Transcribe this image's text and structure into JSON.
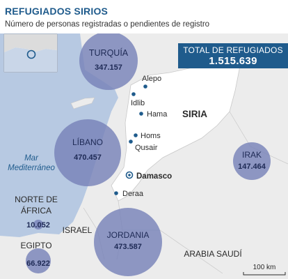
{
  "header": {
    "title": "REFUGIADOS SIRIOS",
    "subtitle": "Número de personas registradas o pendientes de registro"
  },
  "total": {
    "label": "TOTAL DE REFUGIADOS",
    "value": "1.515.639"
  },
  "countries": [
    {
      "name": "TURQUÍA",
      "value": "347.157"
    },
    {
      "name": "LÍBANO",
      "value": "470.457"
    },
    {
      "name": "IRAK",
      "value": "147.464"
    },
    {
      "name": "JORDANIA",
      "value": "473.587"
    },
    {
      "name": "NORTE DE",
      "name2": "ÁFRICA",
      "value": "10.052"
    },
    {
      "name": "EGIPTO",
      "value": "66.922"
    }
  ],
  "cities": [
    "Alepo",
    "Idlib",
    "Hama",
    "Homs",
    "Qusair",
    "Damasco",
    "Deraa"
  ],
  "regions": {
    "syria": "SIRIA",
    "sea_line1": "Mar",
    "sea_line2": "Mediterráneo",
    "israel": "ISRAEL",
    "saudi": "ARABIA SAUDÍ"
  },
  "scale": "100 km",
  "colors": {
    "title": "#1f5b8c",
    "box": "#1f5b8c",
    "sea": "#b7c9e2",
    "land": "#ececec",
    "syria": "#ffffff",
    "bubble": "#7882b8",
    "city": "#1f5b8c"
  }
}
